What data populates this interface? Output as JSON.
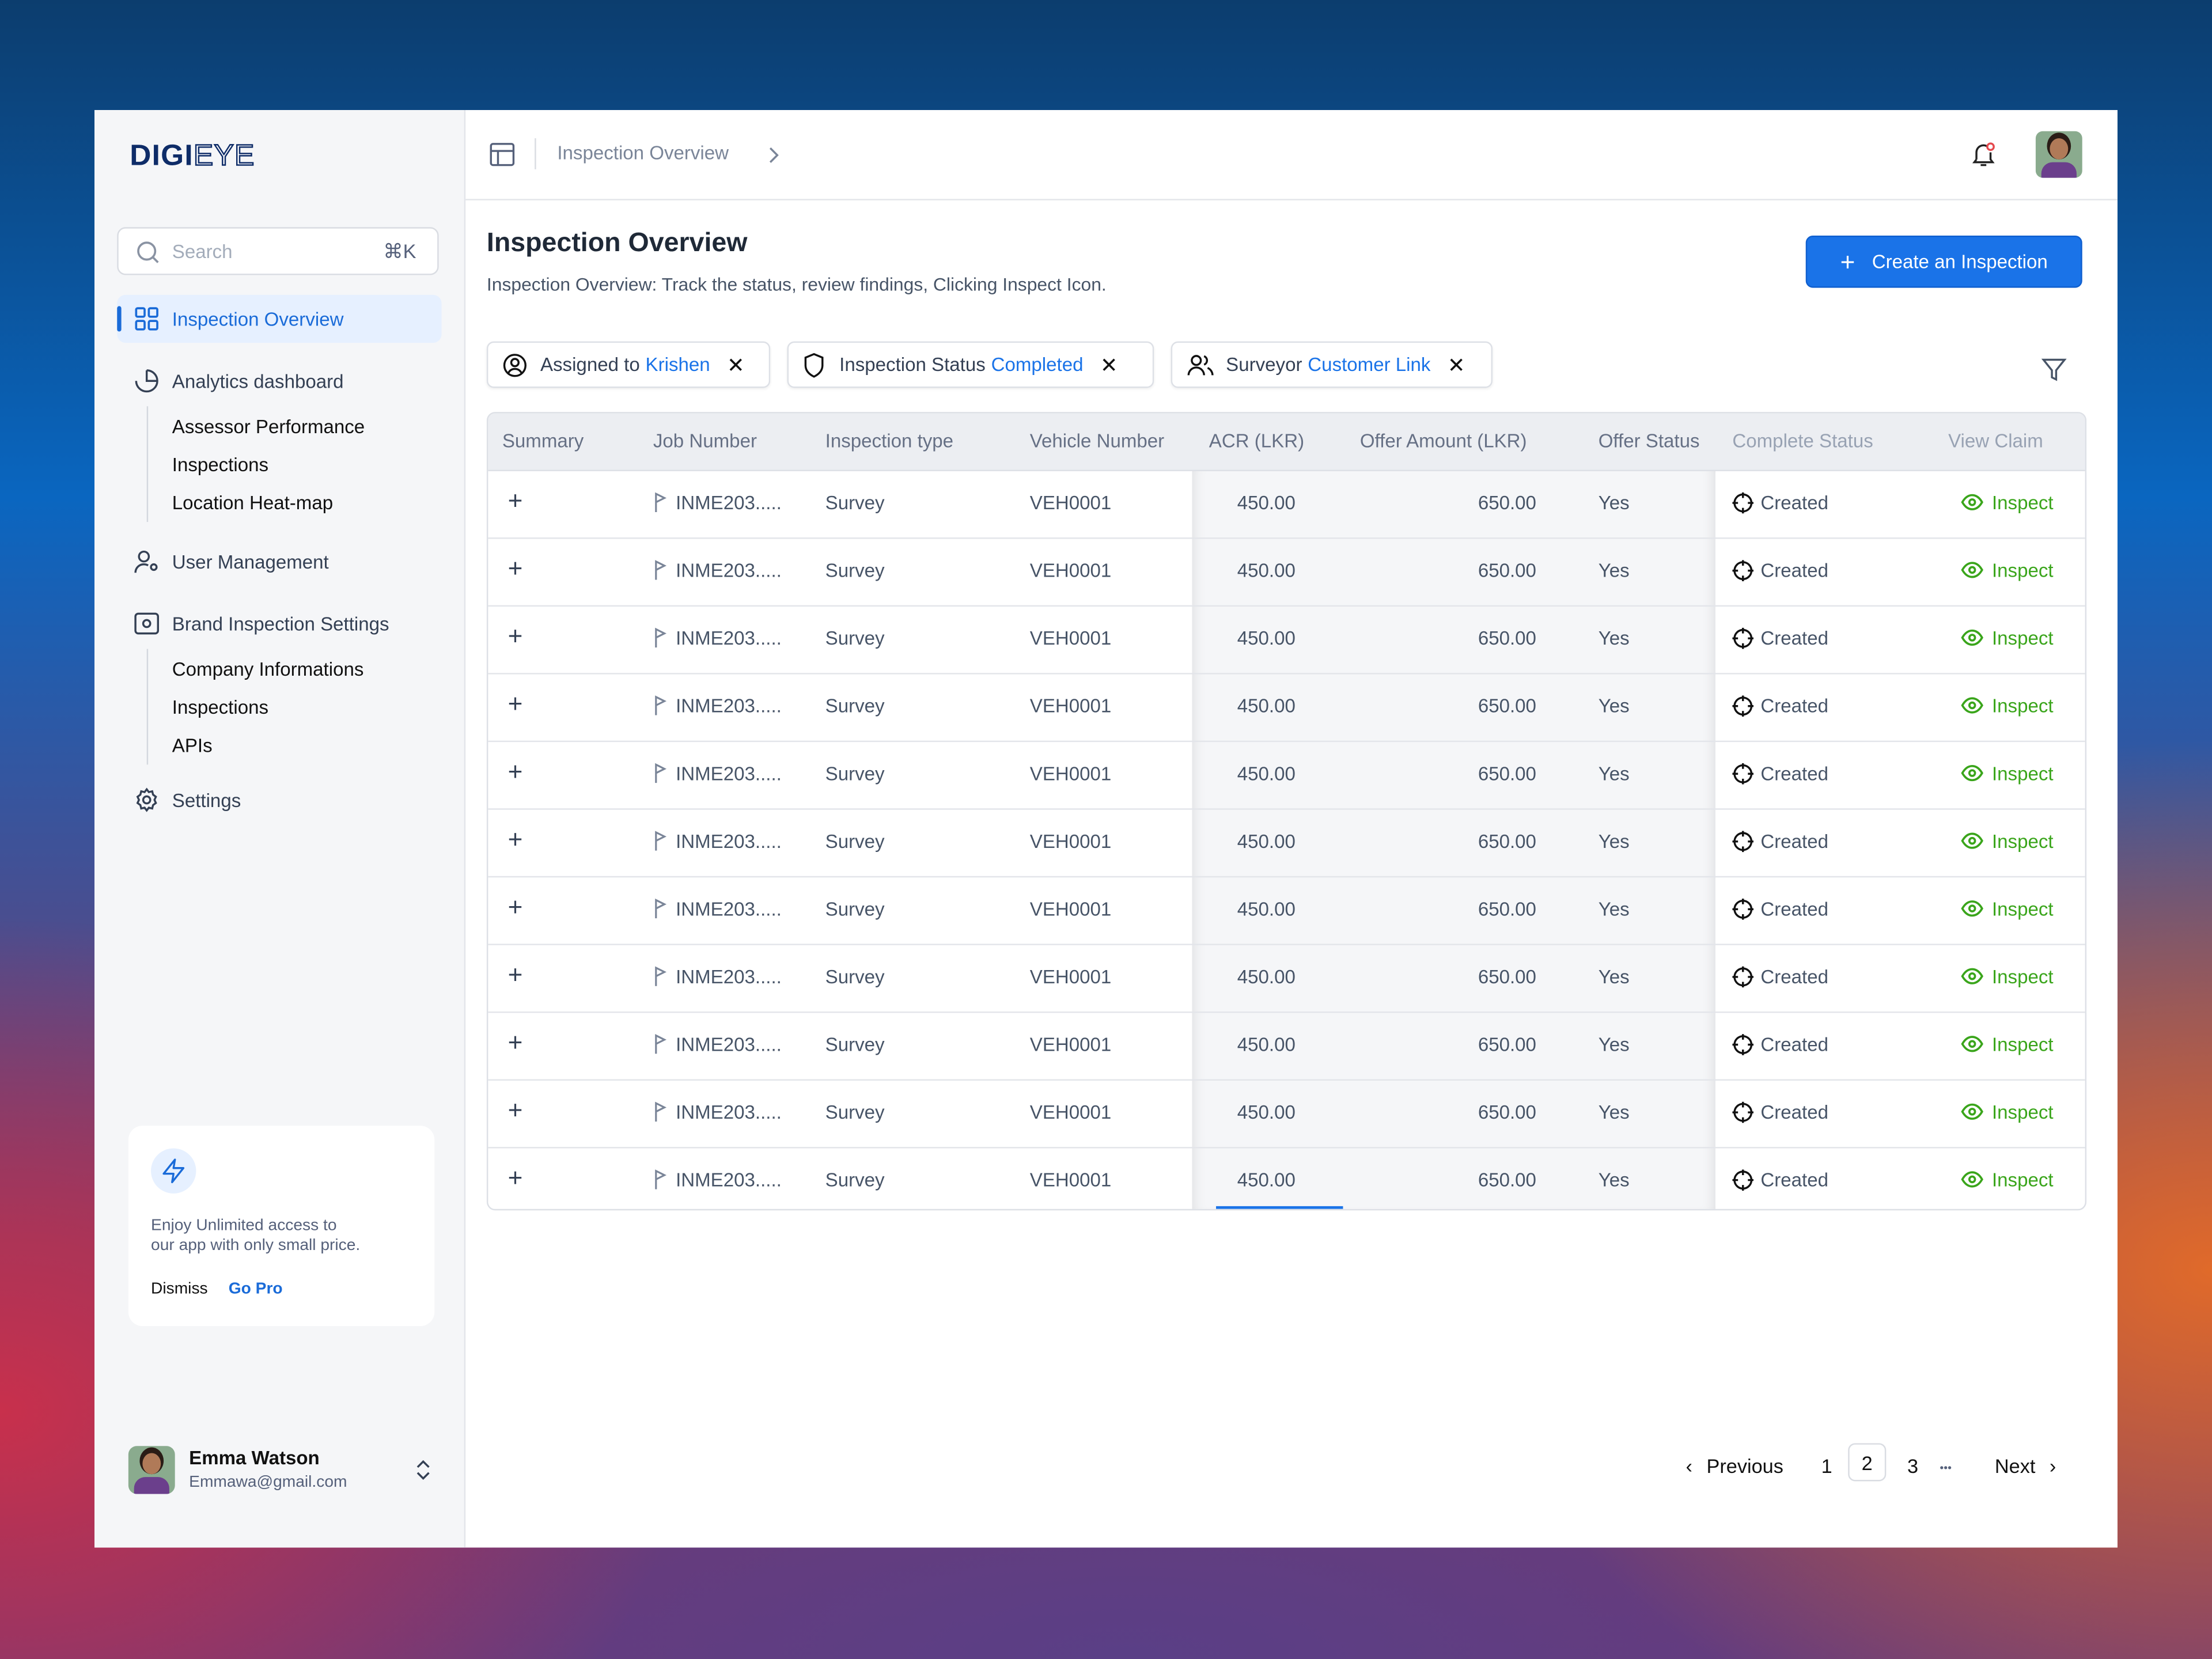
{
  "brand": {
    "logo_bold": "DIGI",
    "logo_outline": "EYE"
  },
  "sidebar": {
    "search": {
      "placeholder": "Search",
      "shortcut": "⌘K"
    },
    "items": [
      {
        "label": "Inspection Overview",
        "icon": "grid-icon",
        "active": true
      },
      {
        "label": "Analytics dashboard",
        "icon": "pie-chart-icon",
        "children": [
          "Assessor Performance",
          "Inspections",
          "Location Heat-map"
        ]
      },
      {
        "label": "User Management",
        "icon": "user-settings-icon"
      },
      {
        "label": "Brand Inspection Settings",
        "icon": "settings-panel-icon",
        "children": [
          "Company Informations",
          "Inspections",
          "APIs"
        ]
      },
      {
        "label": "Settings",
        "icon": "gear-icon"
      }
    ],
    "promo": {
      "text_line1": "Enjoy Unlimited access to",
      "text_line2": "our app with only small price.",
      "dismiss": "Dismiss",
      "go_pro": "Go Pro"
    },
    "user": {
      "name": "Emma Watson",
      "email": "Emmawa@gmail.com"
    }
  },
  "header": {
    "breadcrumb": "Inspection Overview"
  },
  "page": {
    "title": "Inspection Overview",
    "subtitle": "Inspection Overview: Track the status, review findings, Clicking Inspect Icon.",
    "create_button": "Create an Inspection"
  },
  "filters": [
    {
      "label": "Assigned to",
      "value": "Krishen",
      "icon": "user-circle-icon"
    },
    {
      "label": "Inspection Status",
      "value": "Completed",
      "icon": "shield-icon"
    },
    {
      "label": "Surveyor",
      "value": "Customer Link",
      "icon": "users-icon"
    }
  ],
  "table": {
    "columns": [
      "Summary",
      "Job Number",
      "Inspection type",
      "Vehicle Number",
      "ACR (LKR)",
      "Offer Amount (LKR)",
      "Offer Status",
      "Complete Status",
      "View Claim"
    ],
    "rows": [
      {
        "job": "INME203.....",
        "type": "Survey",
        "vehicle": "VEH0001",
        "acr": "450.00",
        "offer": "650.00",
        "offer_status": "Yes",
        "complete": "Created",
        "action": "Inspect"
      },
      {
        "job": "INME203.....",
        "type": "Survey",
        "vehicle": "VEH0001",
        "acr": "450.00",
        "offer": "650.00",
        "offer_status": "Yes",
        "complete": "Created",
        "action": "Inspect"
      },
      {
        "job": "INME203.....",
        "type": "Survey",
        "vehicle": "VEH0001",
        "acr": "450.00",
        "offer": "650.00",
        "offer_status": "Yes",
        "complete": "Created",
        "action": "Inspect"
      },
      {
        "job": "INME203.....",
        "type": "Survey",
        "vehicle": "VEH0001",
        "acr": "450.00",
        "offer": "650.00",
        "offer_status": "Yes",
        "complete": "Created",
        "action": "Inspect"
      },
      {
        "job": "INME203.....",
        "type": "Survey",
        "vehicle": "VEH0001",
        "acr": "450.00",
        "offer": "650.00",
        "offer_status": "Yes",
        "complete": "Created",
        "action": "Inspect"
      },
      {
        "job": "INME203.....",
        "type": "Survey",
        "vehicle": "VEH0001",
        "acr": "450.00",
        "offer": "650.00",
        "offer_status": "Yes",
        "complete": "Created",
        "action": "Inspect"
      },
      {
        "job": "INME203.....",
        "type": "Survey",
        "vehicle": "VEH0001",
        "acr": "450.00",
        "offer": "650.00",
        "offer_status": "Yes",
        "complete": "Created",
        "action": "Inspect"
      },
      {
        "job": "INME203.....",
        "type": "Survey",
        "vehicle": "VEH0001",
        "acr": "450.00",
        "offer": "650.00",
        "offer_status": "Yes",
        "complete": "Created",
        "action": "Inspect"
      },
      {
        "job": "INME203.....",
        "type": "Survey",
        "vehicle": "VEH0001",
        "acr": "450.00",
        "offer": "650.00",
        "offer_status": "Yes",
        "complete": "Created",
        "action": "Inspect"
      },
      {
        "job": "INME203.....",
        "type": "Survey",
        "vehicle": "VEH0001",
        "acr": "450.00",
        "offer": "650.00",
        "offer_status": "Yes",
        "complete": "Created",
        "action": "Inspect"
      },
      {
        "job": "INME203.....",
        "type": "Survey",
        "vehicle": "VEH0001",
        "acr": "450.00",
        "offer": "650.00",
        "offer_status": "Yes",
        "complete": "Created",
        "action": "Inspect"
      }
    ]
  },
  "pagination": {
    "previous": "Previous",
    "pages": [
      "1",
      "2",
      "3"
    ],
    "current": "2",
    "ellipsis": "•••",
    "next": "Next"
  },
  "colors": {
    "accent": "#1a73e8",
    "inspect_green": "#3aa51b",
    "sidebar_bg": "#f5f6f8"
  }
}
